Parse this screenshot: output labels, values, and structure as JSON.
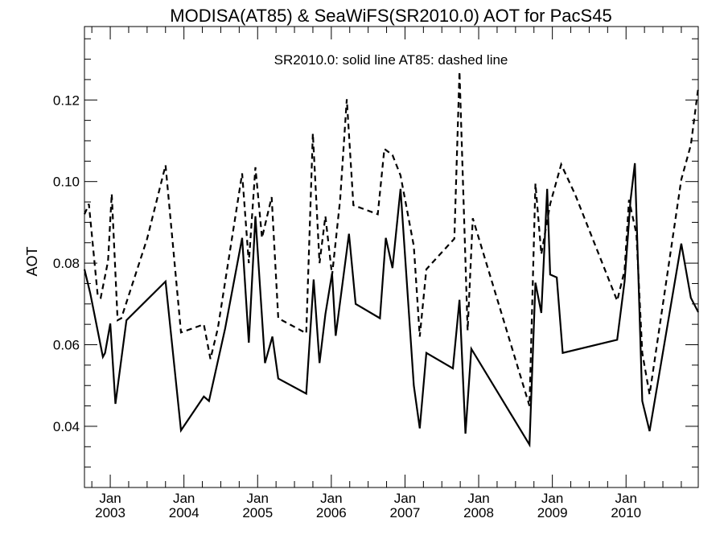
{
  "chart_data": {
    "type": "line",
    "title": "MODISA(AT85) & SeaWiFS(SR2010.0)  AOT for PacS45",
    "annotation": "SR2010.0: solid line   AT85: dashed line",
    "xlabel": "",
    "ylabel": "AOT",
    "xlim": [
      2002.65,
      2010.98
    ],
    "ylim": [
      0.025,
      0.138
    ],
    "x_ticks": [
      {
        "value": 2003.0,
        "line1": "Jan",
        "line2": "2003"
      },
      {
        "value": 2004.0,
        "line1": "Jan",
        "line2": "2004"
      },
      {
        "value": 2005.0,
        "line1": "Jan",
        "line2": "2005"
      },
      {
        "value": 2006.0,
        "line1": "Jan",
        "line2": "2006"
      },
      {
        "value": 2007.0,
        "line1": "Jan",
        "line2": "2007"
      },
      {
        "value": 2008.0,
        "line1": "Jan",
        "line2": "2008"
      },
      {
        "value": 2009.0,
        "line1": "Jan",
        "line2": "2009"
      },
      {
        "value": 2010.0,
        "line1": "Jan",
        "line2": "2010"
      }
    ],
    "x_minor_ticks": [
      2002.75,
      2003.25,
      2003.5,
      2003.75,
      2004.25,
      2004.5,
      2004.75,
      2005.25,
      2005.5,
      2005.75,
      2006.25,
      2006.5,
      2006.75,
      2007.25,
      2007.5,
      2007.75,
      2008.25,
      2008.5,
      2008.75,
      2009.25,
      2009.5,
      2009.75,
      2010.25,
      2010.5,
      2010.75
    ],
    "y_ticks": [
      {
        "value": 0.04,
        "label": "0.04"
      },
      {
        "value": 0.06,
        "label": "0.06"
      },
      {
        "value": 0.08,
        "label": "0.08"
      },
      {
        "value": 0.1,
        "label": "0.10"
      },
      {
        "value": 0.12,
        "label": "0.12"
      }
    ],
    "y_minor_ticks": [
      0.03,
      0.035,
      0.045,
      0.05,
      0.055,
      0.065,
      0.07,
      0.075,
      0.085,
      0.09,
      0.095,
      0.105,
      0.11,
      0.115,
      0.125,
      0.13,
      0.135
    ],
    "grid": false,
    "series": [
      {
        "name": "SR2010.0",
        "style": "solid",
        "color": "#000000",
        "points": [
          [
            2002.65,
            0.0785
          ],
          [
            2002.73,
            0.0725
          ],
          [
            2002.9,
            0.057
          ],
          [
            2002.93,
            0.058
          ],
          [
            2003.0,
            0.0652
          ],
          [
            2003.07,
            0.0455
          ],
          [
            2003.22,
            0.066
          ],
          [
            2003.75,
            0.0755
          ],
          [
            2003.96,
            0.039
          ],
          [
            2004.27,
            0.0473
          ],
          [
            2004.34,
            0.0462
          ],
          [
            2004.56,
            0.064
          ],
          [
            2004.79,
            0.0862
          ],
          [
            2004.88,
            0.0605
          ],
          [
            2004.97,
            0.0915
          ],
          [
            2005.1,
            0.0555
          ],
          [
            2005.2,
            0.062
          ],
          [
            2005.28,
            0.0517
          ],
          [
            2005.66,
            0.048
          ],
          [
            2005.76,
            0.076
          ],
          [
            2005.84,
            0.0555
          ],
          [
            2005.92,
            0.0675
          ],
          [
            2006.01,
            0.0775
          ],
          [
            2006.06,
            0.0622
          ],
          [
            2006.24,
            0.0872
          ],
          [
            2006.33,
            0.07
          ],
          [
            2006.66,
            0.0665
          ],
          [
            2006.74,
            0.0862
          ],
          [
            2006.83,
            0.0788
          ],
          [
            2006.94,
            0.0982
          ],
          [
            2007.12,
            0.05
          ],
          [
            2007.2,
            0.0395
          ],
          [
            2007.29,
            0.058
          ],
          [
            2007.65,
            0.0542
          ],
          [
            2007.74,
            0.071
          ],
          [
            2007.82,
            0.0382
          ],
          [
            2007.9,
            0.059
          ],
          [
            2008.69,
            0.0355
          ],
          [
            2008.77,
            0.0752
          ],
          [
            2008.85,
            0.0678
          ],
          [
            2008.93,
            0.0982
          ],
          [
            2008.97,
            0.0772
          ],
          [
            2009.06,
            0.0765
          ],
          [
            2009.14,
            0.058
          ],
          [
            2009.88,
            0.0612
          ],
          [
            2009.98,
            0.0755
          ],
          [
            2010.06,
            0.0952
          ],
          [
            2010.12,
            0.1045
          ],
          [
            2010.22,
            0.0462
          ],
          [
            2010.32,
            0.0388
          ],
          [
            2010.75,
            0.0848
          ],
          [
            2010.88,
            0.0715
          ],
          [
            2010.98,
            0.068
          ]
        ]
      },
      {
        "name": "AT85",
        "style": "dashed",
        "color": "#000000",
        "points": [
          [
            2002.65,
            0.092
          ],
          [
            2002.71,
            0.0945
          ],
          [
            2002.83,
            0.072
          ],
          [
            2002.87,
            0.0715
          ],
          [
            2002.97,
            0.0805
          ],
          [
            2003.02,
            0.097
          ],
          [
            2003.1,
            0.066
          ],
          [
            2003.15,
            0.0665
          ],
          [
            2003.5,
            0.086
          ],
          [
            2003.75,
            0.104
          ],
          [
            2003.96,
            0.063
          ],
          [
            2004.27,
            0.065
          ],
          [
            2004.36,
            0.0565
          ],
          [
            2004.46,
            0.064
          ],
          [
            2004.79,
            0.102
          ],
          [
            2004.88,
            0.08
          ],
          [
            2004.97,
            0.1035
          ],
          [
            2005.06,
            0.0862
          ],
          [
            2005.19,
            0.0962
          ],
          [
            2005.28,
            0.0665
          ],
          [
            2005.66,
            0.0628
          ],
          [
            2005.75,
            0.1118
          ],
          [
            2005.84,
            0.08
          ],
          [
            2005.92,
            0.0915
          ],
          [
            2006.01,
            0.077
          ],
          [
            2006.12,
            0.0955
          ],
          [
            2006.21,
            0.1202
          ],
          [
            2006.3,
            0.0942
          ],
          [
            2006.63,
            0.092
          ],
          [
            2006.72,
            0.108
          ],
          [
            2006.83,
            0.1065
          ],
          [
            2006.94,
            0.1015
          ],
          [
            2007.12,
            0.0842
          ],
          [
            2007.2,
            0.062
          ],
          [
            2007.29,
            0.0785
          ],
          [
            2007.67,
            0.086
          ],
          [
            2007.74,
            0.127
          ],
          [
            2007.85,
            0.0635
          ],
          [
            2007.92,
            0.091
          ],
          [
            2008.69,
            0.045
          ],
          [
            2008.77,
            0.0995
          ],
          [
            2008.85,
            0.0822
          ],
          [
            2008.97,
            0.0945
          ],
          [
            2009.12,
            0.1042
          ],
          [
            2009.31,
            0.0968
          ],
          [
            2009.88,
            0.0708
          ],
          [
            2009.98,
            0.0782
          ],
          [
            2010.04,
            0.0955
          ],
          [
            2010.14,
            0.0872
          ],
          [
            2010.22,
            0.058
          ],
          [
            2010.32,
            0.0478
          ],
          [
            2010.75,
            0.1005
          ],
          [
            2010.88,
            0.109
          ],
          [
            2010.98,
            0.123
          ]
        ]
      }
    ]
  }
}
